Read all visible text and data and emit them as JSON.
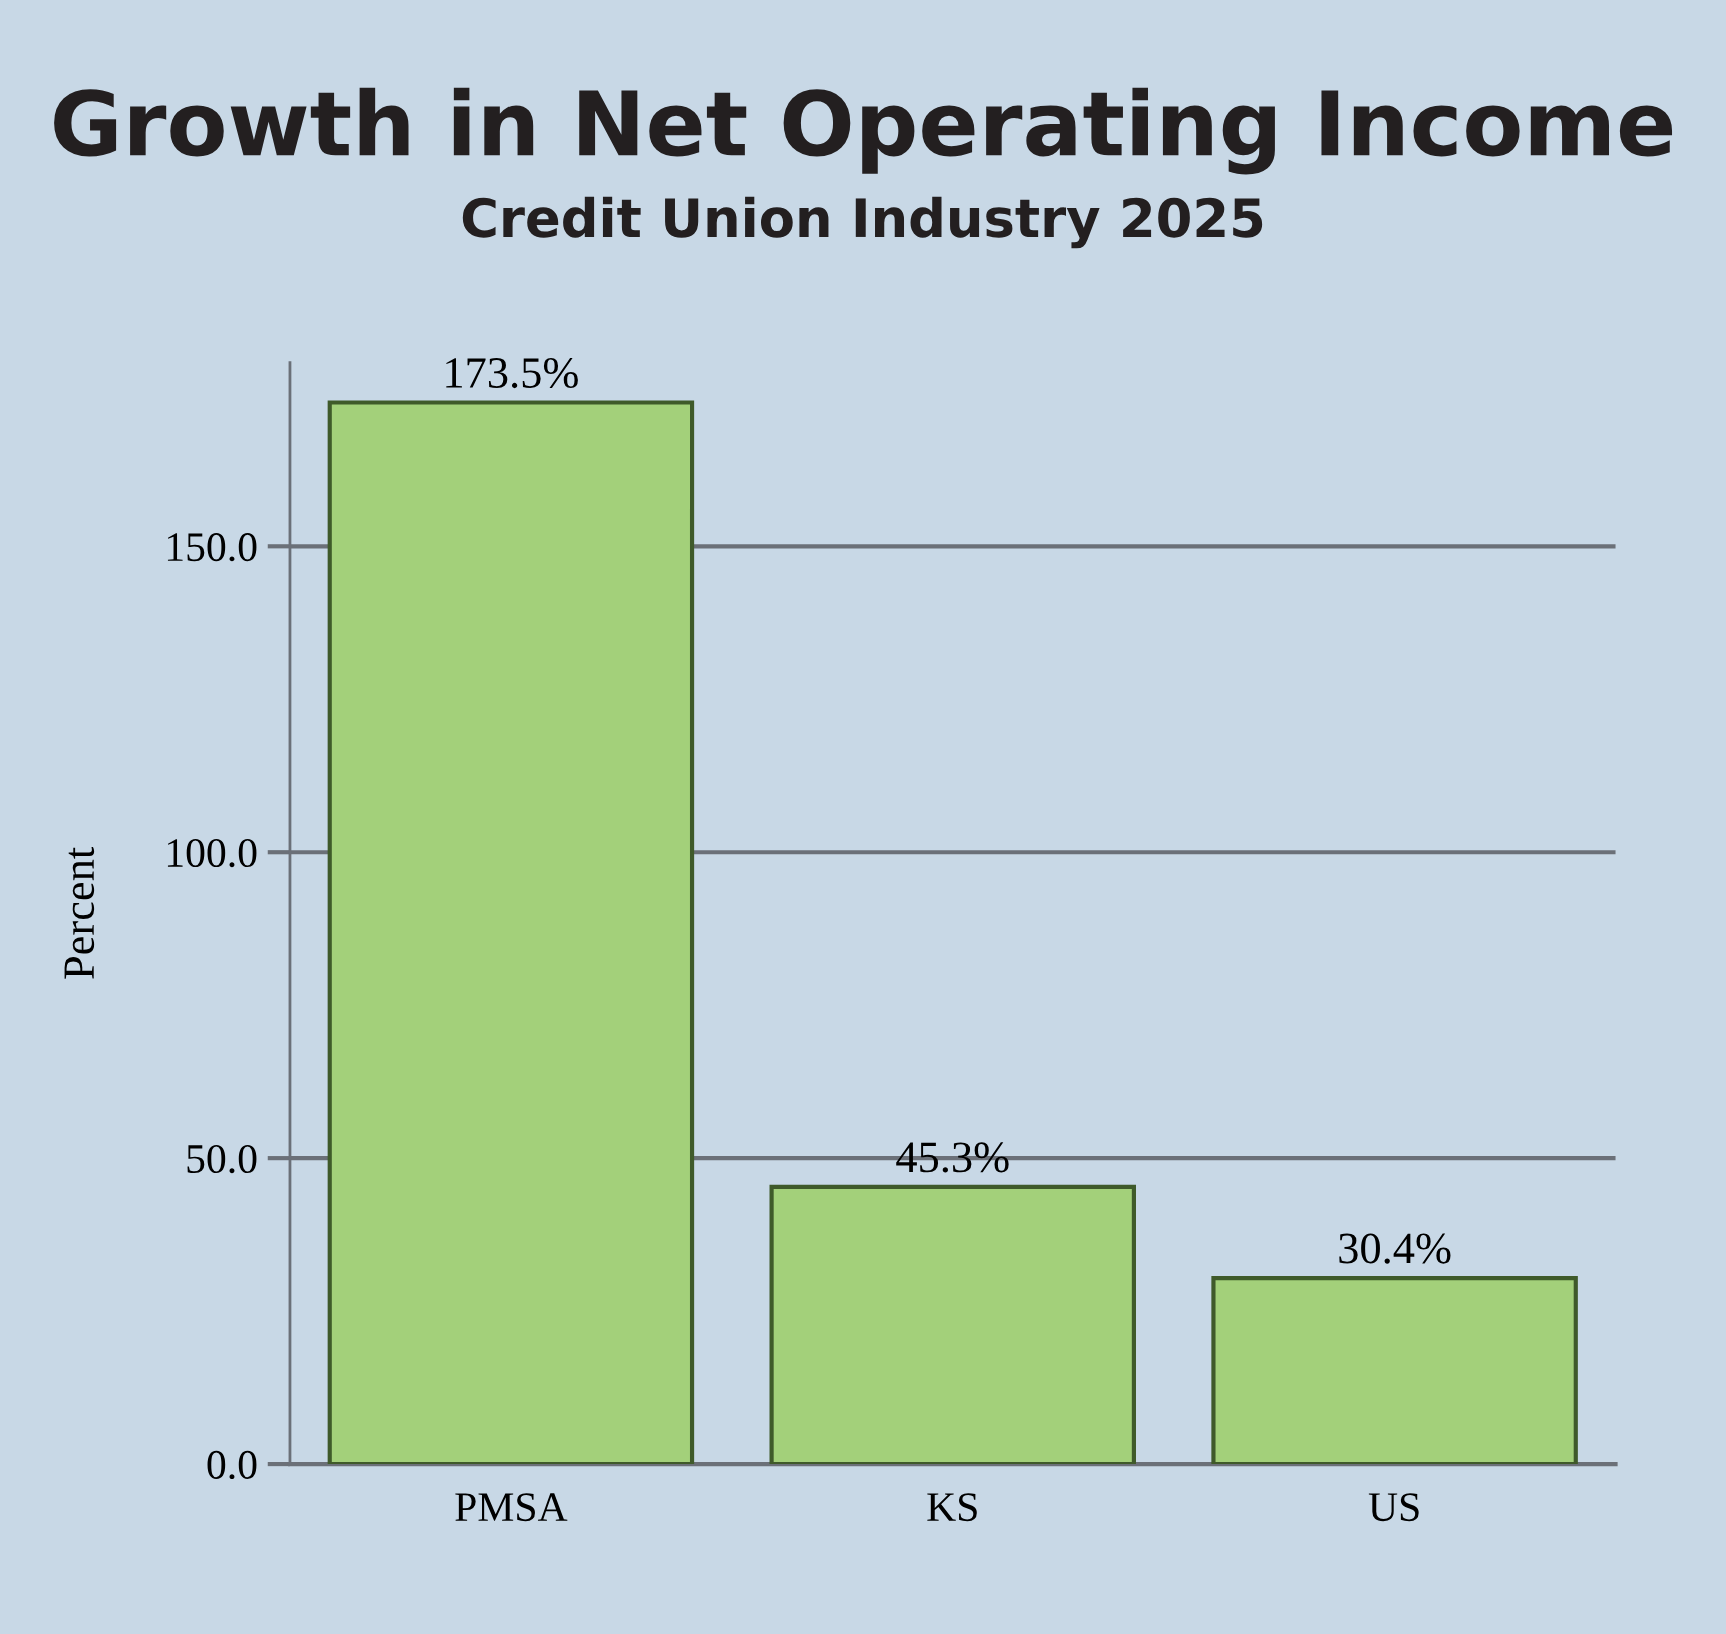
{
  "chart_data": {
    "type": "bar",
    "title": "Growth in Net Operating Income",
    "subtitle": "Credit Union Industry 2025",
    "ylabel": "Percent",
    "categories": [
      "PMSA",
      "KS",
      "US"
    ],
    "values": [
      173.5,
      45.3,
      30.4
    ],
    "value_labels": [
      "173.5%",
      "45.3%",
      "30.4%"
    ],
    "color": "#a3d07a",
    "ylim": [
      0,
      180
    ],
    "yticks": [
      {
        "value": 0,
        "label": "0.0"
      },
      {
        "value": 50,
        "label": "50.0"
      },
      {
        "value": 100,
        "label": "100.0"
      },
      {
        "value": 150,
        "label": "150.0"
      }
    ],
    "grid": "y"
  }
}
